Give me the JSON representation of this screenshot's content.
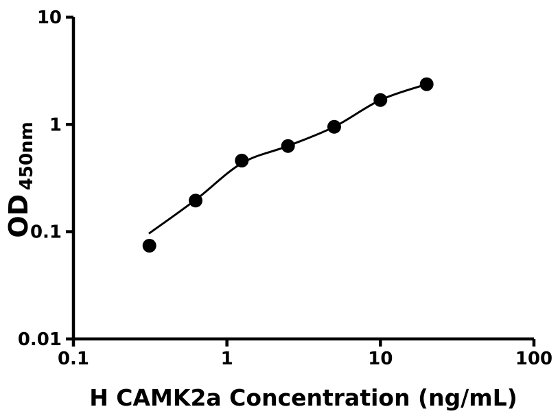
{
  "chart_data": {
    "type": "scatter",
    "title": "",
    "xlabel": "H CAMK2a Concentration (ng/mL)",
    "ylabel": "OD",
    "ylabel_subscript": "450nm",
    "x_scale": "log",
    "y_scale": "log",
    "xlim": [
      0.1,
      100
    ],
    "ylim": [
      0.01,
      10
    ],
    "x_ticks": [
      0.1,
      1,
      10,
      100
    ],
    "x_tick_labels": [
      "0.1",
      "1",
      "10",
      "100"
    ],
    "y_ticks": [
      0.01,
      0.1,
      1,
      10
    ],
    "y_tick_labels": [
      "0.01",
      "0.1",
      "1",
      "10"
    ],
    "grid": false,
    "legend": "none",
    "series": [
      {
        "name": "standard-points",
        "marker": "circle",
        "x": [
          0.3125,
          0.625,
          1.25,
          2.5,
          5,
          10,
          20
        ],
        "y": [
          0.074,
          0.195,
          0.46,
          0.63,
          0.95,
          1.69,
          2.37
        ]
      }
    ],
    "fit_curve": {
      "name": "fitted-standard-curve",
      "x": [
        0.31,
        0.625,
        1.25,
        2.5,
        5,
        10,
        20
      ],
      "y": [
        0.096,
        0.198,
        0.435,
        0.63,
        0.95,
        1.69,
        2.37
      ]
    }
  },
  "colors": {
    "background": "#ffffff",
    "axis": "#000000",
    "marker": "#000000",
    "curve": "#000000",
    "text": "#000000"
  }
}
